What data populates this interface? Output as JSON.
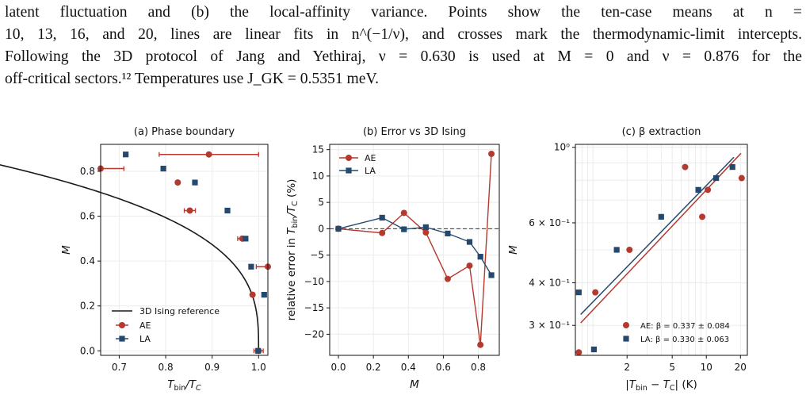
{
  "caption": {
    "line1": "latent fluctuation and (b) the local-affinity variance. Points show the ten-case means at n =",
    "line2": "10, 13, 16, and 20, lines are linear fits in n^(−1/ν), and crosses mark the thermodynamic-limit intercepts.",
    "line3": "Following the 3D protocol of Jang and Yethiraj, ν = 0.630 is used at M = 0 and ν = 0.876 for the",
    "line4": "off-critical sectors.¹² Temperatures use J_GK = 0.5351 meV."
  },
  "colors": {
    "AE": "#b5392e",
    "LA": "#24496e",
    "ref": "#1a1a1a"
  },
  "chart_data": [
    {
      "type": "scatter",
      "title": "(a) Phase boundary",
      "xlabel": "T_bin/T_C",
      "ylabel": "M",
      "xlim": [
        0.66,
        1.02
      ],
      "ylim": [
        -0.02,
        0.92
      ],
      "xticks": [
        "0.7",
        "0.8",
        "0.9",
        "1.0"
      ],
      "yticks": [
        "0.0",
        "0.2",
        "0.4",
        "0.6",
        "0.8"
      ],
      "grid": true,
      "legend_position": "lower-left",
      "reference_line": {
        "name": "3D Ising reference",
        "Tc_ratio": 1.0,
        "beta": 0.326,
        "M_max": 0.905
      },
      "series": [
        {
          "name": "AE",
          "points": [
            {
              "x": 0.66,
              "y": 0.812,
              "xerr": 0.05
            },
            {
              "x": 0.826,
              "y": 0.75,
              "xerr": 0.004
            },
            {
              "x": 0.852,
              "y": 0.625,
              "xerr": 0.012
            },
            {
              "x": 0.893,
              "y": 0.875,
              "xerr": 0.107
            },
            {
              "x": 0.965,
              "y": 0.5,
              "xerr": 0.01
            },
            {
              "x": 1.02,
              "y": 0.375,
              "xerr": 0.025
            },
            {
              "x": 0.987,
              "y": 0.25,
              "xerr": 0.004
            },
            {
              "x": 1.0,
              "y": 0.0,
              "xerr": 0.01
            }
          ]
        },
        {
          "name": "LA",
          "points": [
            {
              "x": 0.714,
              "y": 0.875
            },
            {
              "x": 0.795,
              "y": 0.812
            },
            {
              "x": 0.863,
              "y": 0.75
            },
            {
              "x": 0.933,
              "y": 0.625
            },
            {
              "x": 0.972,
              "y": 0.5
            },
            {
              "x": 0.984,
              "y": 0.375
            },
            {
              "x": 1.012,
              "y": 0.25
            },
            {
              "x": 0.999,
              "y": 0.0
            }
          ]
        }
      ]
    },
    {
      "type": "line",
      "title": "(b) Error vs 3D Ising",
      "xlabel": "M",
      "ylabel": "relative error in T_bin/T_C (%)",
      "xlim": [
        -0.05,
        0.92
      ],
      "ylim": [
        -24,
        16
      ],
      "xticks": [
        "0.0",
        "0.2",
        "0.4",
        "0.6",
        "0.8"
      ],
      "yticks": [
        "−20",
        "−15",
        "−10",
        "−5",
        "0",
        "5",
        "10",
        "15"
      ],
      "grid": true,
      "legend_position": "upper-left",
      "zero_line": true,
      "series": [
        {
          "name": "AE",
          "x": [
            0.0,
            0.25,
            0.375,
            0.5,
            0.625,
            0.75,
            0.812,
            0.875
          ],
          "y": [
            0.0,
            -0.8,
            3.0,
            -0.7,
            -9.5,
            -7.0,
            -22.0,
            14.2
          ]
        },
        {
          "name": "LA",
          "x": [
            0.0,
            0.25,
            0.375,
            0.5,
            0.625,
            0.75,
            0.812,
            0.875
          ],
          "y": [
            0.0,
            2.1,
            -0.1,
            0.3,
            -0.9,
            -2.5,
            -5.3,
            -8.8
          ]
        }
      ]
    },
    {
      "type": "scatter",
      "title": "(c) β extraction",
      "xlabel": "|T_bin − T_C| (K)",
      "ylabel": "M",
      "xscale": "log",
      "yscale": "log",
      "xlim": [
        0.7,
        23
      ],
      "ylim": [
        0.245,
        1.02
      ],
      "xticks": [
        "2",
        "5",
        "10",
        "20"
      ],
      "yticks": [
        "3 × 10⁻¹",
        "4 × 10⁻¹",
        "6 × 10⁻¹",
        "10⁰"
      ],
      "grid": true,
      "legend_position": "lower-right",
      "series": [
        {
          "name": "AE: β = 0.337 ± 0.084",
          "x": [
            0.75,
            1.05,
            2.1,
            6.5,
            9.2,
            10.3,
            20.5
          ],
          "y": [
            0.25,
            0.375,
            0.5,
            0.875,
            0.625,
            0.75,
            0.812
          ],
          "fit": {
            "x": [
              0.78,
              20.2
            ],
            "y": [
              0.305,
              0.96
            ]
          }
        },
        {
          "name": "LA: β = 0.330 ± 0.063",
          "x": [
            0.75,
            1.02,
            1.62,
            4.0,
            8.5,
            12.2,
            17.0
          ],
          "y": [
            0.375,
            0.255,
            0.5,
            0.625,
            0.75,
            0.812,
            0.875
          ],
          "fit": {
            "x": [
              0.78,
              17.5
            ],
            "y": [
              0.323,
              0.935
            ]
          }
        }
      ]
    }
  ]
}
